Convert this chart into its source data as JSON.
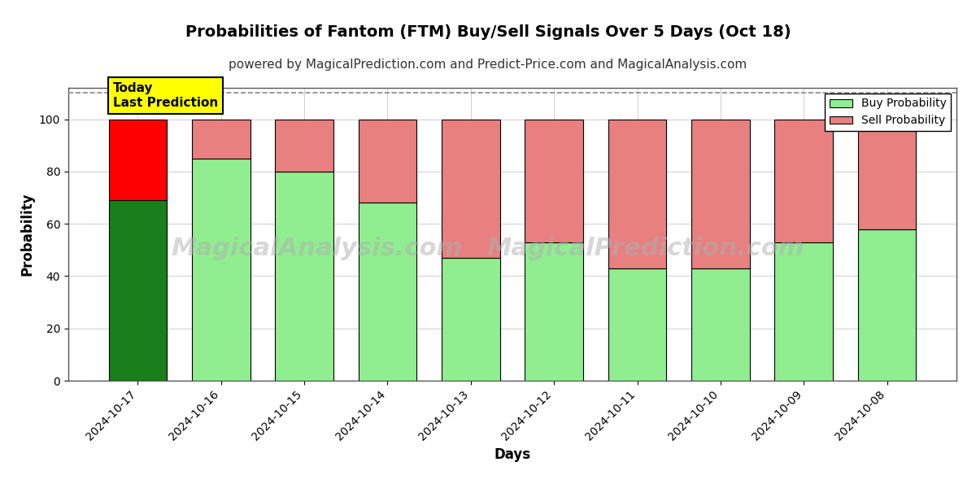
{
  "title": "Probabilities of Fantom (FTM) Buy/Sell Signals Over 5 Days (Oct 18)",
  "subtitle": "powered by MagicalPrediction.com and Predict-Price.com and MagicalAnalysis.com",
  "xlabel": "Days",
  "ylabel": "Probability",
  "categories": [
    "2024-10-17",
    "2024-10-16",
    "2024-10-15",
    "2024-10-14",
    "2024-10-13",
    "2024-10-12",
    "2024-10-11",
    "2024-10-10",
    "2024-10-09",
    "2024-10-08"
  ],
  "buy_values": [
    69,
    85,
    80,
    68,
    47,
    53,
    43,
    43,
    53,
    58
  ],
  "sell_values": [
    31,
    15,
    20,
    32,
    53,
    47,
    57,
    57,
    47,
    42
  ],
  "buy_colors": [
    "#1a7f1a",
    "#90ee90",
    "#90ee90",
    "#90ee90",
    "#90ee90",
    "#90ee90",
    "#90ee90",
    "#90ee90",
    "#90ee90",
    "#90ee90"
  ],
  "sell_colors": [
    "#ff0000",
    "#e88080",
    "#e88080",
    "#e88080",
    "#e88080",
    "#e88080",
    "#e88080",
    "#e88080",
    "#e88080",
    "#e88080"
  ],
  "legend_buy_color": "#90ee90",
  "legend_sell_color": "#e88080",
  "ylim": [
    0,
    112
  ],
  "dashed_line_y": 110,
  "today_box_color": "#ffff00",
  "today_box_text": "Today\nLast Prediction",
  "watermark_line1": "MagicalAnalysis.com",
  "watermark_line2": "MagicalPrediction.com",
  "background_color": "#ffffff",
  "grid_color": "#aaaaaa",
  "bar_edge_color": "#000000",
  "bar_width": 0.7,
  "title_fontsize": 14,
  "subtitle_fontsize": 11,
  "axis_label_fontsize": 12,
  "tick_fontsize": 10,
  "legend_label_buy": "Buy Probability",
  "legend_label_sell": "Sell Probability"
}
